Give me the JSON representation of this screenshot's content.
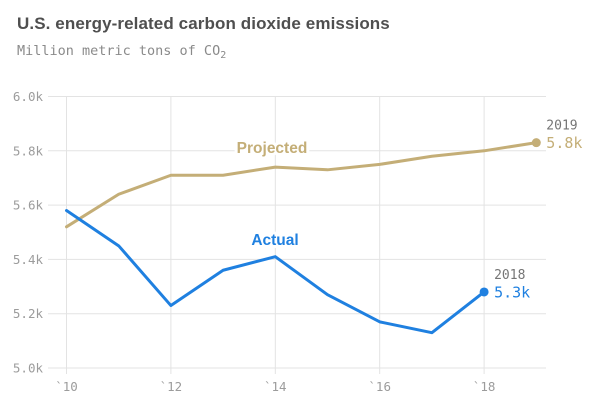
{
  "header": {
    "title": "U.S. energy-related carbon dioxide emissions",
    "subtitle_text": "Million metric tons of CO",
    "subtitle_subscript": "2"
  },
  "colors": {
    "projected": "#c4ae77",
    "actual": "#1f80e0",
    "gridline": "#e3e3e3",
    "tick_text": "#9c9c9c",
    "annotation_year_text": "#757575",
    "title_text": "#4f4f4f",
    "subtitle_text": "#8a8a8a"
  },
  "chart_data": {
    "type": "line",
    "title": "U.S. energy-related carbon dioxide emissions",
    "ylabel": "Million metric tons of CO2",
    "x": [
      2010,
      2011,
      2012,
      2013,
      2014,
      2015,
      2016,
      2017,
      2018,
      2019
    ],
    "series": [
      {
        "name": "Projected",
        "color": "#c4ae77",
        "values": [
          5.52,
          5.64,
          5.71,
          5.71,
          5.74,
          5.73,
          5.75,
          5.78,
          5.8,
          5.83
        ],
        "end_dot": true
      },
      {
        "name": "Actual",
        "color": "#1f80e0",
        "values": [
          5.58,
          5.45,
          5.23,
          5.36,
          5.41,
          5.27,
          5.17,
          5.13,
          5.28
        ],
        "end_dot": true
      }
    ],
    "y_ticks": [
      {
        "label": "6.0k",
        "value": 6.0
      },
      {
        "label": "5.8k",
        "value": 5.8
      },
      {
        "label": "5.6k",
        "value": 5.6
      },
      {
        "label": "5.4k",
        "value": 5.4
      },
      {
        "label": "5.2k",
        "value": 5.2
      },
      {
        "label": "5.0k",
        "value": 5.0
      }
    ],
    "x_ticks": [
      {
        "label": "`10",
        "year": 2010
      },
      {
        "label": "`12",
        "year": 2012
      },
      {
        "label": "`14",
        "year": 2014
      },
      {
        "label": "`16",
        "year": 2016
      },
      {
        "label": "`18",
        "year": 2018
      }
    ],
    "ylim": [
      5.0,
      6.0
    ],
    "xlim": [
      2010,
      2019
    ],
    "grid": true,
    "legend_position": "inline-labels",
    "annotations": [
      {
        "series": "Projected",
        "year_label": "2019",
        "value_label": "5.8k"
      },
      {
        "series": "Actual",
        "year_label": "2018",
        "value_label": "5.3k"
      }
    ]
  }
}
